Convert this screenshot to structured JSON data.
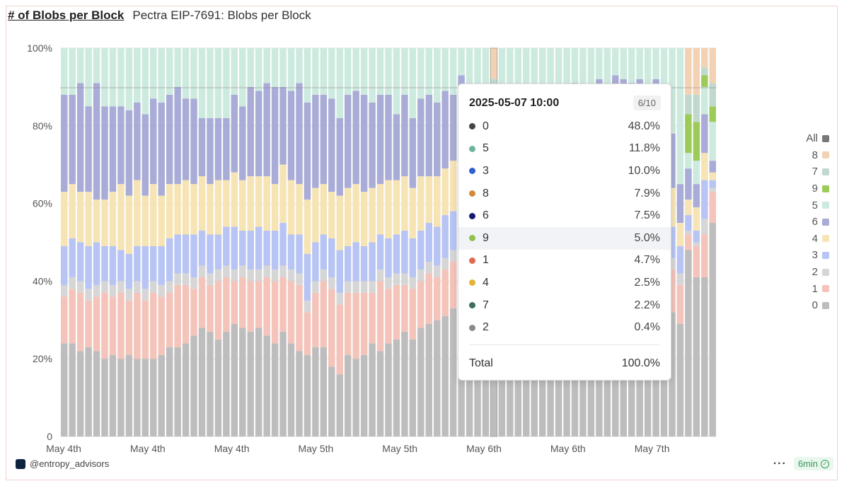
{
  "header": {
    "link_label": "# of Blobs per Block",
    "subtitle": "Pectra EIP-7691: Blobs per Block"
  },
  "chart_data": {
    "type": "bar",
    "stacked": true,
    "normalized": true,
    "title": "Pectra EIP-7691: Blobs per Block",
    "y_tick_labels": [
      "0",
      "20%",
      "40%",
      "60%",
      "80%",
      "100%"
    ],
    "x_tick_labels": [
      "May 4th",
      "May 4th",
      "May 4th",
      "May 5th",
      "May 5th",
      "May 6th",
      "May 6th",
      "May 7th"
    ],
    "ylim": [
      0,
      100
    ],
    "grid": true,
    "legend_position": "right",
    "stack_order_bottom_to_top": [
      "0",
      "1",
      "2",
      "3",
      "4",
      "6",
      "5",
      "9",
      "7",
      "8"
    ],
    "series_colors": {
      "0": "#bdbdbd",
      "1": "#f4c3ba",
      "2": "#d6d6d6",
      "3": "#b7c4f4",
      "4": "#f6e4b5",
      "5": "#cdeadf",
      "6": "#a9acd6",
      "7": "#bfd9cf",
      "8": "#f3d2b3",
      "9": "#9ccb59"
    },
    "highlighted_bar_index": 53,
    "bars": [
      {
        "s0": 24,
        "s1": 12,
        "s2": 3,
        "s3": 10,
        "s4": 14,
        "s6": 25
      },
      {
        "s0": 24,
        "s1": 14,
        "s2": 3,
        "s3": 10,
        "s4": 14,
        "s6": 23
      },
      {
        "s0": 22,
        "s1": 15,
        "s2": 3,
        "s3": 10,
        "s4": 13,
        "s6": 28
      },
      {
        "s0": 23,
        "s1": 12,
        "s2": 3,
        "s3": 11,
        "s4": 14,
        "s6": 22
      },
      {
        "s0": 22,
        "s1": 14,
        "s2": 3,
        "s3": 11,
        "s4": 11,
        "s6": 30
      },
      {
        "s0": 20,
        "s1": 17,
        "s2": 3,
        "s3": 9,
        "s4": 12,
        "s6": 24
      },
      {
        "s0": 21,
        "s1": 15,
        "s2": 3,
        "s3": 10,
        "s4": 14,
        "s6": 22
      },
      {
        "s0": 20,
        "s1": 17,
        "s2": 3,
        "s3": 8,
        "s4": 17,
        "s6": 20
      },
      {
        "s0": 21,
        "s1": 14,
        "s2": 3,
        "s3": 9,
        "s4": 15,
        "s6": 22
      },
      {
        "s0": 20,
        "s1": 17,
        "s2": 3,
        "s3": 9,
        "s4": 17,
        "s6": 20
      },
      {
        "s0": 20,
        "s1": 15,
        "s2": 3,
        "s3": 11,
        "s4": 13,
        "s6": 21
      },
      {
        "s0": 20,
        "s1": 17,
        "s2": 3,
        "s3": 9,
        "s4": 16,
        "s6": 22
      },
      {
        "s0": 21,
        "s1": 15,
        "s2": 3,
        "s3": 10,
        "s4": 13,
        "s6": 24
      },
      {
        "s0": 23,
        "s1": 14,
        "s2": 3,
        "s3": 11,
        "s4": 14,
        "s6": 23
      },
      {
        "s0": 23,
        "s1": 16,
        "s2": 3,
        "s3": 10,
        "s4": 13,
        "s6": 25
      },
      {
        "s0": 24,
        "s1": 15,
        "s2": 3,
        "s3": 10,
        "s4": 14,
        "s6": 21
      },
      {
        "s0": 26,
        "s1": 12,
        "s2": 3,
        "s3": 11,
        "s4": 13,
        "s6": 22
      },
      {
        "s0": 28,
        "s1": 13,
        "s2": 3,
        "s3": 9,
        "s4": 14,
        "s6": 15
      },
      {
        "s0": 27,
        "s1": 12,
        "s2": 3,
        "s3": 10,
        "s4": 13,
        "s6": 17
      },
      {
        "s0": 25,
        "s1": 15,
        "s2": 3,
        "s3": 9,
        "s4": 14,
        "s6": 16
      },
      {
        "s0": 27,
        "s1": 14,
        "s2": 3,
        "s3": 10,
        "s4": 12,
        "s6": 16
      },
      {
        "s0": 29,
        "s1": 11,
        "s2": 3,
        "s3": 11,
        "s4": 14,
        "s6": 20
      },
      {
        "s0": 28,
        "s1": 13,
        "s2": 3,
        "s3": 9,
        "s4": 13,
        "s6": 19
      },
      {
        "s0": 27,
        "s1": 13,
        "s2": 3,
        "s3": 10,
        "s4": 14,
        "s6": 23
      },
      {
        "s0": 28,
        "s1": 12,
        "s2": 3,
        "s3": 11,
        "s4": 13,
        "s6": 22
      },
      {
        "s0": 26,
        "s1": 15,
        "s2": 3,
        "s3": 9,
        "s4": 14,
        "s6": 24
      },
      {
        "s0": 24,
        "s1": 16,
        "s2": 3,
        "s3": 10,
        "s4": 12,
        "s6": 25
      },
      {
        "s0": 27,
        "s1": 14,
        "s2": 3,
        "s3": 11,
        "s4": 15,
        "s6": 20
      },
      {
        "s0": 24,
        "s1": 16,
        "s2": 3,
        "s3": 9,
        "s4": 14,
        "s6": 23
      },
      {
        "s0": 22,
        "s1": 17,
        "s2": 3,
        "s3": 10,
        "s4": 13,
        "s6": 26
      },
      {
        "s0": 21,
        "s1": 11,
        "s2": 3,
        "s3": 12,
        "s4": 14,
        "s6": 25
      },
      {
        "s0": 23,
        "s1": 14,
        "s2": 3,
        "s3": 10,
        "s4": 14,
        "s6": 24
      },
      {
        "s0": 23,
        "s1": 17,
        "s2": 3,
        "s3": 9,
        "s4": 13,
        "s6": 23
      },
      {
        "s0": 18,
        "s1": 20,
        "s2": 3,
        "s3": 10,
        "s4": 12,
        "s6": 24
      },
      {
        "s0": 16,
        "s1": 18,
        "s2": 3,
        "s3": 11,
        "s4": 14,
        "s6": 20
      },
      {
        "s0": 21,
        "s1": 16,
        "s2": 3,
        "s3": 9,
        "s4": 15,
        "s6": 24
      },
      {
        "s0": 20,
        "s1": 17,
        "s2": 3,
        "s3": 10,
        "s4": 15,
        "s6": 24
      },
      {
        "s0": 21,
        "s1": 16,
        "s2": 3,
        "s3": 9,
        "s4": 14,
        "s6": 25
      },
      {
        "s0": 24,
        "s1": 13,
        "s2": 3,
        "s3": 10,
        "s4": 14,
        "s6": 22
      },
      {
        "s0": 22,
        "s1": 18,
        "s2": 3,
        "s3": 9,
        "s4": 13,
        "s6": 23
      },
      {
        "s0": 24,
        "s1": 14,
        "s2": 3,
        "s3": 10,
        "s4": 15,
        "s6": 22
      },
      {
        "s0": 25,
        "s1": 14,
        "s2": 3,
        "s3": 10,
        "s4": 14,
        "s6": 17
      },
      {
        "s0": 27,
        "s1": 12,
        "s2": 3,
        "s3": 11,
        "s4": 14,
        "s6": 21
      },
      {
        "s0": 25,
        "s1": 13,
        "s2": 3,
        "s3": 10,
        "s4": 13,
        "s6": 18
      },
      {
        "s0": 28,
        "s1": 12,
        "s2": 3,
        "s3": 10,
        "s4": 14,
        "s6": 20
      },
      {
        "s0": 29,
        "s1": 13,
        "s2": 3,
        "s3": 10,
        "s4": 12,
        "s6": 21
      },
      {
        "s0": 30,
        "s1": 11,
        "s2": 3,
        "s3": 10,
        "s4": 13,
        "s6": 19
      },
      {
        "s0": 31,
        "s1": 12,
        "s2": 3,
        "s3": 11,
        "s4": 12,
        "s6": 20
      },
      {
        "s0": 33,
        "s1": 12,
        "s2": 3,
        "s3": 10,
        "s4": 13,
        "s6": 17
      },
      {
        "s0": 36,
        "s1": 11,
        "s2": 3,
        "s3": 10,
        "s4": 13,
        "s6": 20
      },
      {
        "s0": 28,
        "s1": 10,
        "s2": 3,
        "s3": 9,
        "s4": 13,
        "s6": 26
      },
      {
        "s0": 22,
        "s1": 10,
        "s2": 3,
        "s3": 5,
        "s4": 12,
        "s6": 30
      },
      {
        "s0": 22,
        "s1": 12,
        "s2": 3,
        "s3": 5,
        "s4": 11,
        "s6": 32
      },
      {
        "s0": 48,
        "s1": 4.7,
        "s2": 0.4,
        "s3": 10,
        "s4": 2.5,
        "s6": 7.5,
        "s5": 11.8,
        "s9": 5,
        "s7": 2.2,
        "s8": 7.9
      },
      {
        "s0": 30,
        "s1": 13,
        "s2": 3,
        "s3": 12,
        "s4": 12,
        "s6": 20
      },
      {
        "s0": 31,
        "s1": 12,
        "s2": 3,
        "s3": 11,
        "s4": 13,
        "s6": 20
      },
      {
        "s0": 32,
        "s1": 12,
        "s2": 3,
        "s3": 10,
        "s4": 12,
        "s6": 21
      },
      {
        "s0": 33,
        "s1": 11,
        "s2": 3,
        "s3": 11,
        "s4": 12,
        "s6": 20
      },
      {
        "s0": 32,
        "s1": 12,
        "s2": 3,
        "s3": 10,
        "s4": 13,
        "s6": 19
      },
      {
        "s0": 33,
        "s1": 12,
        "s2": 3,
        "s3": 11,
        "s4": 12,
        "s6": 18
      },
      {
        "s0": 34,
        "s1": 11,
        "s2": 3,
        "s3": 10,
        "s4": 12,
        "s6": 20
      },
      {
        "s0": 33,
        "s1": 12,
        "s2": 3,
        "s3": 11,
        "s4": 12,
        "s6": 18
      },
      {
        "s0": 34,
        "s1": 11,
        "s2": 3,
        "s3": 10,
        "s4": 13,
        "s6": 19
      },
      {
        "s0": 35,
        "s1": 11,
        "s2": 3,
        "s3": 10,
        "s4": 12,
        "s6": 20
      },
      {
        "s0": 34,
        "s1": 12,
        "s2": 3,
        "s3": 11,
        "s4": 12,
        "s6": 17
      },
      {
        "s0": 35,
        "s1": 11,
        "s2": 3,
        "s3": 10,
        "s4": 12,
        "s6": 19
      },
      {
        "s0": 36,
        "s1": 11,
        "s2": 3,
        "s3": 10,
        "s4": 12,
        "s6": 20
      },
      {
        "s0": 35,
        "s1": 11,
        "s2": 3,
        "s3": 10,
        "s4": 13,
        "s6": 18
      },
      {
        "s0": 36,
        "s1": 11,
        "s2": 3,
        "s3": 10,
        "s4": 12,
        "s6": 21
      },
      {
        "s0": 37,
        "s1": 10,
        "s2": 3,
        "s3": 10,
        "s4": 12,
        "s6": 20
      },
      {
        "s0": 36,
        "s1": 11,
        "s2": 3,
        "s3": 10,
        "s4": 12,
        "s6": 19
      },
      {
        "s0": 37,
        "s1": 10,
        "s2": 3,
        "s3": 10,
        "s4": 12,
        "s6": 20
      },
      {
        "s0": 36,
        "s1": 11,
        "s2": 3,
        "s3": 10,
        "s4": 12,
        "s6": 18
      },
      {
        "s0": 37,
        "s1": 10,
        "s2": 3,
        "s3": 10,
        "s4": 12,
        "s6": 20
      },
      {
        "s0": 35,
        "s1": 11,
        "s2": 3,
        "s3": 10,
        "s4": 12,
        "s6": 19
      },
      {
        "s0": 32,
        "s1": 11,
        "s2": 3,
        "s3": 8,
        "s4": 10,
        "s6": 14
      },
      {
        "s0": 29,
        "s1": 10,
        "s2": 3,
        "s3": 7,
        "s4": 6,
        "s6": 10
      },
      {
        "s0": 48,
        "s1": 4,
        "s2": 1,
        "s3": 4,
        "s4": 4,
        "s6": 8,
        "s5": 4,
        "s9": 10,
        "s7": 5,
        "s8": 12
      },
      {
        "s0": 41,
        "s1": 8,
        "s2": 1,
        "s3": 3,
        "s4": 6,
        "s6": 6,
        "s5": 6,
        "s9": 10,
        "s7": 7,
        "s8": 12
      },
      {
        "s0": 41,
        "s1": 11,
        "s2": 4,
        "s3": 10,
        "s4": 7,
        "s6": 10,
        "s5": 7,
        "s9": 3,
        "s7": 2,
        "s8": 5
      },
      {
        "s0": 55,
        "s1": 8,
        "s2": 1,
        "s3": 2,
        "s4": 2,
        "s6": 3,
        "s5": 10,
        "s9": 4,
        "s7": 6,
        "s8": 9
      }
    ]
  },
  "legend": {
    "title": "All",
    "items": [
      {
        "label": "8",
        "color": "#f3d2b3"
      },
      {
        "label": "7",
        "color": "#bfd9cf"
      },
      {
        "label": "9",
        "color": "#9ccb59"
      },
      {
        "label": "5",
        "color": "#cdeadf"
      },
      {
        "label": "6",
        "color": "#a9acd6"
      },
      {
        "label": "4",
        "color": "#f6e4b5"
      },
      {
        "label": "3",
        "color": "#b7c4f4"
      },
      {
        "label": "2",
        "color": "#d6d6d6"
      },
      {
        "label": "1",
        "color": "#f4c3ba"
      },
      {
        "label": "0",
        "color": "#bdbdbd"
      }
    ],
    "all_color": "#777777"
  },
  "tooltip": {
    "title": "2025-05-07 10:00",
    "page": "6/10",
    "rows": [
      {
        "label": "0",
        "value": "48.0%",
        "color": "#444444"
      },
      {
        "label": "5",
        "value": "11.8%",
        "color": "#6cb59c"
      },
      {
        "label": "3",
        "value": "10.0%",
        "color": "#2f5fd0"
      },
      {
        "label": "8",
        "value": "7.9%",
        "color": "#d58a3a"
      },
      {
        "label": "6",
        "value": "7.5%",
        "color": "#151b6e"
      },
      {
        "label": "9",
        "value": "5.0%",
        "color": "#8fc24a"
      },
      {
        "label": "1",
        "value": "4.7%",
        "color": "#e06a4f"
      },
      {
        "label": "4",
        "value": "2.5%",
        "color": "#e2b43a"
      },
      {
        "label": "7",
        "value": "2.2%",
        "color": "#3e6e5f"
      },
      {
        "label": "2",
        "value": "0.4%",
        "color": "#8a8a8a"
      }
    ],
    "highlighted_label": "9",
    "total_label": "Total",
    "total_value": "100.0%"
  },
  "footer": {
    "handle": "@entropy_advisors",
    "more": "···",
    "age": "6min"
  }
}
